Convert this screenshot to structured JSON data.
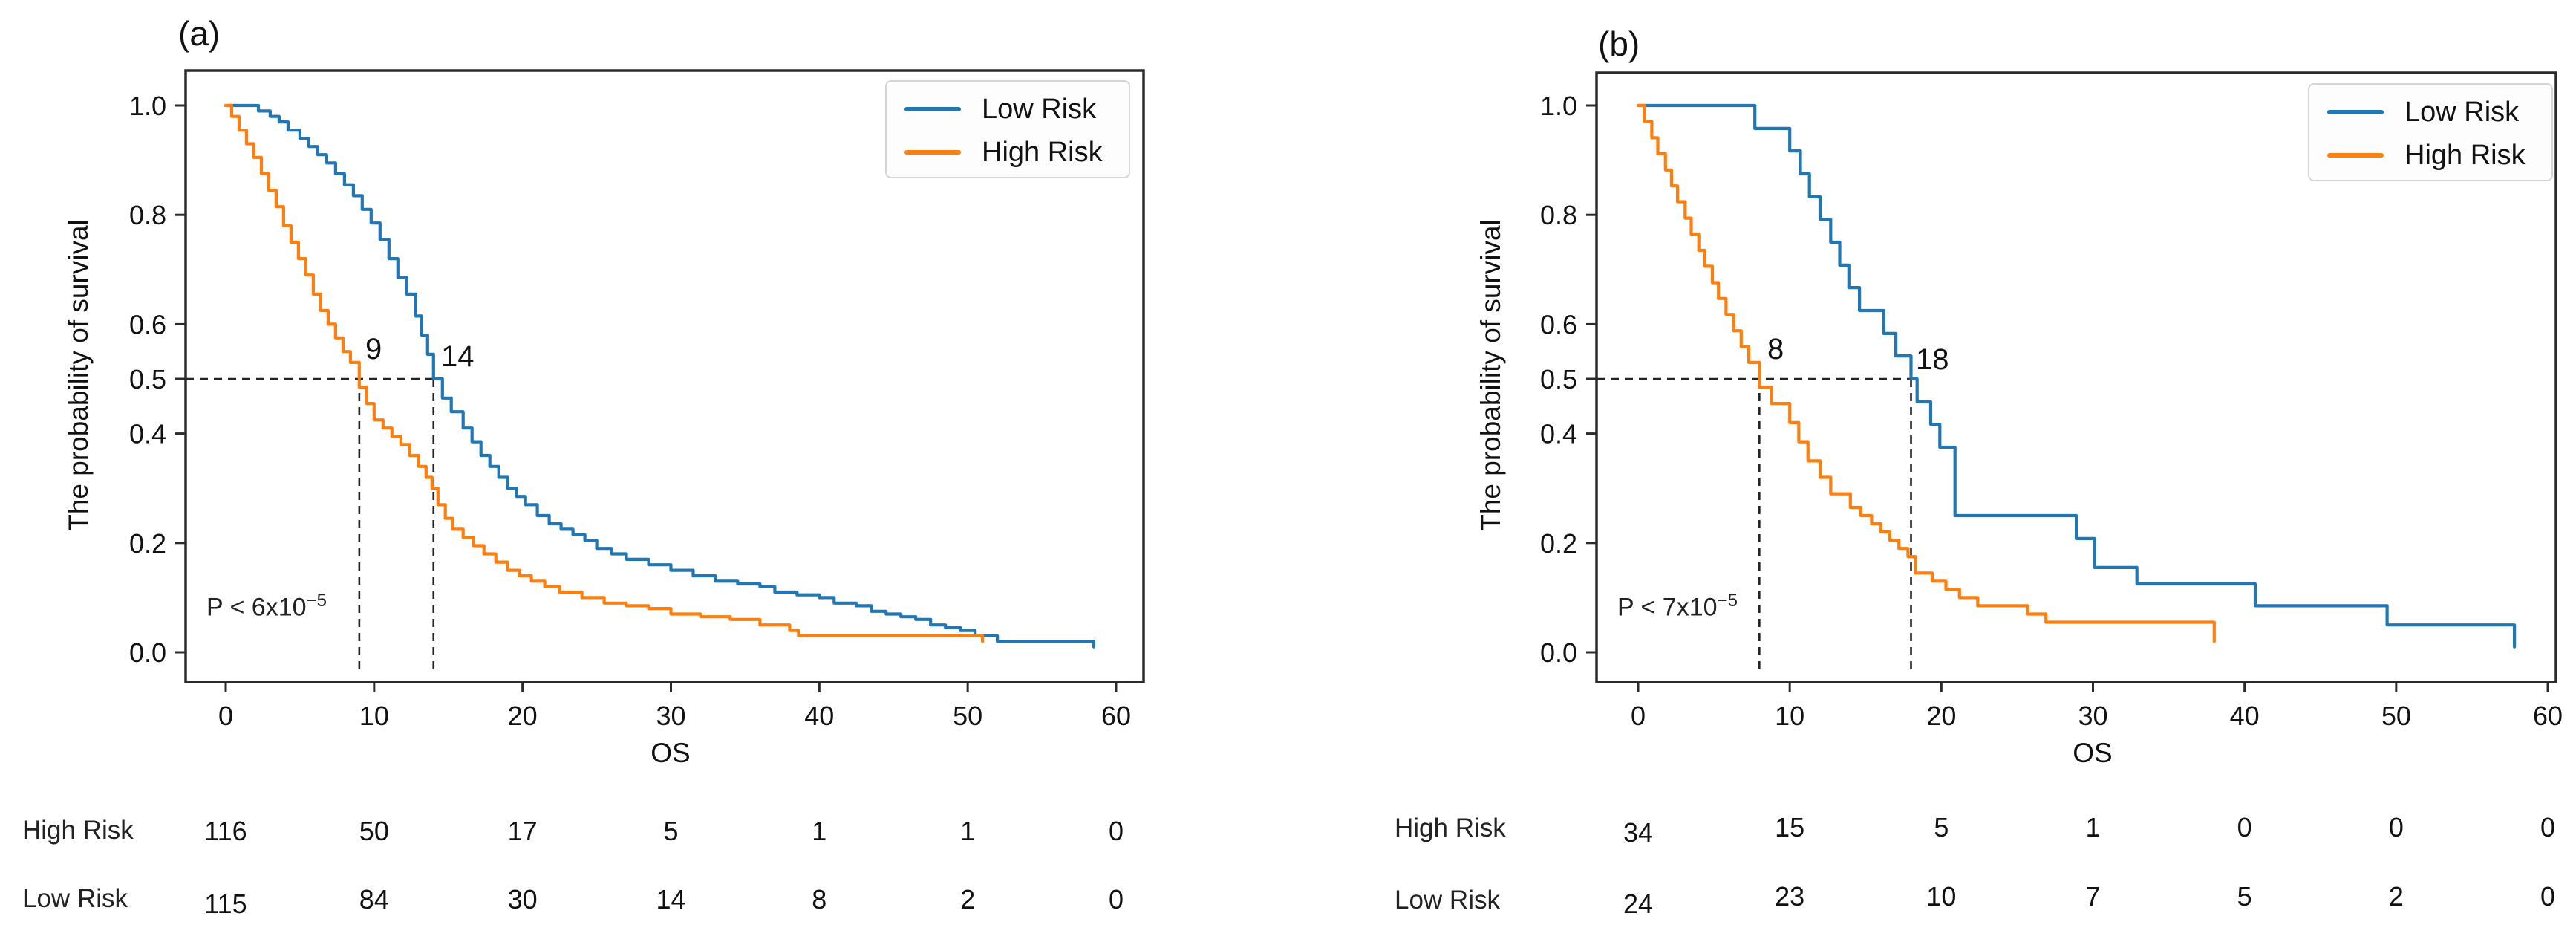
{
  "chart_data": [
    {
      "type": "line",
      "subtype": "kaplan-meier-step",
      "title": "(a)",
      "xlabel": "OS",
      "ylabel": "The probability of survival",
      "xticks": [
        0,
        10,
        20,
        30,
        40,
        50,
        60
      ],
      "yticks": [
        "1.0",
        "0.8",
        "0.6",
        "0.5",
        "0.4",
        "0.2",
        "0.0"
      ],
      "ytick_values": [
        1.0,
        0.8,
        0.6,
        0.5,
        0.4,
        0.2,
        0.0
      ],
      "xlim": [
        0,
        60
      ],
      "ylim": [
        0.0,
        1.0
      ],
      "grid": false,
      "legend_position": "upper right",
      "annotations": {
        "p_value_base": "P < 6x10",
        "p_value_sup": "−5",
        "median_line_y": 0.5,
        "medians": [
          {
            "label": "9",
            "x": 9,
            "series": "High Risk"
          },
          {
            "label": "14",
            "x": 14,
            "series": "Low Risk"
          }
        ]
      },
      "series": [
        {
          "name": "Low Risk",
          "color": "#2077b4",
          "points": [
            [
              0,
              1.0
            ],
            [
              2.2,
              0.99
            ],
            [
              3,
              0.98
            ],
            [
              3.6,
              0.97
            ],
            [
              4.2,
              0.955
            ],
            [
              5,
              0.94
            ],
            [
              5.6,
              0.925
            ],
            [
              6.2,
              0.91
            ],
            [
              6.8,
              0.895
            ],
            [
              7.4,
              0.875
            ],
            [
              8,
              0.855
            ],
            [
              8.6,
              0.835
            ],
            [
              9.2,
              0.81
            ],
            [
              9.8,
              0.785
            ],
            [
              10.4,
              0.755
            ],
            [
              11,
              0.72
            ],
            [
              11.6,
              0.685
            ],
            [
              12.2,
              0.655
            ],
            [
              12.8,
              0.615
            ],
            [
              13.2,
              0.58
            ],
            [
              13.6,
              0.545
            ],
            [
              14,
              0.5
            ],
            [
              14.6,
              0.465
            ],
            [
              15.2,
              0.44
            ],
            [
              16,
              0.41
            ],
            [
              16.6,
              0.385
            ],
            [
              17.2,
              0.36
            ],
            [
              17.8,
              0.34
            ],
            [
              18.4,
              0.32
            ],
            [
              19,
              0.3
            ],
            [
              19.6,
              0.285
            ],
            [
              20.2,
              0.27
            ],
            [
              21,
              0.25
            ],
            [
              21.8,
              0.235
            ],
            [
              22.6,
              0.225
            ],
            [
              23.4,
              0.215
            ],
            [
              24.2,
              0.205
            ],
            [
              25,
              0.19
            ],
            [
              26,
              0.18
            ],
            [
              27,
              0.17
            ],
            [
              28.5,
              0.16
            ],
            [
              30,
              0.15
            ],
            [
              31.5,
              0.14
            ],
            [
              33,
              0.13
            ],
            [
              34.5,
              0.125
            ],
            [
              36,
              0.12
            ],
            [
              37,
              0.11
            ],
            [
              38.5,
              0.105
            ],
            [
              40,
              0.1
            ],
            [
              41,
              0.09
            ],
            [
              42.5,
              0.085
            ],
            [
              43.5,
              0.075
            ],
            [
              44.5,
              0.07
            ],
            [
              45.5,
              0.065
            ],
            [
              46.5,
              0.06
            ],
            [
              47.5,
              0.05
            ],
            [
              48.5,
              0.045
            ],
            [
              49.5,
              0.04
            ],
            [
              50.5,
              0.03
            ],
            [
              52,
              0.02
            ],
            [
              58.5,
              0.01
            ]
          ]
        },
        {
          "name": "High Risk",
          "color": "#ff7f0e",
          "points": [
            [
              0,
              1.0
            ],
            [
              0.4,
              0.98
            ],
            [
              0.9,
              0.955
            ],
            [
              1.4,
              0.93
            ],
            [
              1.9,
              0.905
            ],
            [
              2.4,
              0.875
            ],
            [
              2.9,
              0.845
            ],
            [
              3.4,
              0.815
            ],
            [
              3.9,
              0.78
            ],
            [
              4.4,
              0.75
            ],
            [
              4.9,
              0.72
            ],
            [
              5.4,
              0.69
            ],
            [
              5.9,
              0.655
            ],
            [
              6.4,
              0.625
            ],
            [
              6.9,
              0.6
            ],
            [
              7.4,
              0.575
            ],
            [
              7.9,
              0.55
            ],
            [
              8.4,
              0.53
            ],
            [
              9,
              0.485
            ],
            [
              9.5,
              0.455
            ],
            [
              10,
              0.425
            ],
            [
              10.6,
              0.41
            ],
            [
              11.2,
              0.395
            ],
            [
              11.8,
              0.38
            ],
            [
              12.4,
              0.36
            ],
            [
              13,
              0.34
            ],
            [
              13.5,
              0.32
            ],
            [
              13.9,
              0.3
            ],
            [
              14.3,
              0.27
            ],
            [
              14.8,
              0.245
            ],
            [
              15.3,
              0.225
            ],
            [
              16,
              0.21
            ],
            [
              16.7,
              0.195
            ],
            [
              17.4,
              0.18
            ],
            [
              18.2,
              0.165
            ],
            [
              19,
              0.15
            ],
            [
              19.8,
              0.14
            ],
            [
              20.6,
              0.13
            ],
            [
              21.5,
              0.12
            ],
            [
              22.5,
              0.11
            ],
            [
              24,
              0.1
            ],
            [
              25.5,
              0.09
            ],
            [
              27,
              0.085
            ],
            [
              28.5,
              0.08
            ],
            [
              30,
              0.07
            ],
            [
              32,
              0.065
            ],
            [
              34,
              0.06
            ],
            [
              36,
              0.05
            ],
            [
              38,
              0.04
            ],
            [
              38.6,
              0.03
            ],
            [
              51,
              0.02
            ]
          ]
        }
      ],
      "risk_table": {
        "time_points": [
          0,
          10,
          20,
          30,
          40,
          50,
          60
        ],
        "rows": [
          {
            "label": "High Risk",
            "counts": [
              "116",
              "50",
              "17",
              "5",
              "1",
              "1",
              "0"
            ]
          },
          {
            "label": "Low Risk",
            "counts": [
              "115",
              "84",
              "30",
              "14",
              "8",
              "2",
              "0"
            ]
          }
        ]
      }
    },
    {
      "type": "line",
      "subtype": "kaplan-meier-step",
      "title": "(b)",
      "xlabel": "OS",
      "ylabel": "The probability of survival",
      "xticks": [
        0,
        10,
        20,
        30,
        40,
        50,
        60
      ],
      "yticks": [
        "1.0",
        "0.8",
        "0.6",
        "0.5",
        "0.4",
        "0.2",
        "0.0"
      ],
      "ytick_values": [
        1.0,
        0.8,
        0.6,
        0.5,
        0.4,
        0.2,
        0.0
      ],
      "xlim": [
        0,
        60
      ],
      "ylim": [
        0.0,
        1.0
      ],
      "grid": false,
      "legend_position": "upper right",
      "annotations": {
        "p_value_base": "P < 7x10",
        "p_value_sup": "−5",
        "median_line_y": 0.5,
        "medians": [
          {
            "label": "8",
            "x": 8,
            "series": "High Risk"
          },
          {
            "label": "18",
            "x": 18,
            "series": "Low Risk"
          }
        ]
      },
      "series": [
        {
          "name": "Low Risk",
          "color": "#2077b4",
          "points": [
            [
              0,
              1.0
            ],
            [
              7.7,
              0.958
            ],
            [
              10,
              0.917
            ],
            [
              10.7,
              0.875
            ],
            [
              11.3,
              0.833
            ],
            [
              12,
              0.792
            ],
            [
              12.7,
              0.75
            ],
            [
              13.3,
              0.708
            ],
            [
              13.9,
              0.667
            ],
            [
              14.6,
              0.625
            ],
            [
              16.2,
              0.583
            ],
            [
              17,
              0.542
            ],
            [
              18,
              0.5
            ],
            [
              18.4,
              0.458
            ],
            [
              19.3,
              0.417
            ],
            [
              19.9,
              0.375
            ],
            [
              20.9,
              0.25
            ],
            [
              28.9,
              0.208
            ],
            [
              30.1,
              0.155
            ],
            [
              32.9,
              0.125
            ],
            [
              40.7,
              0.085
            ],
            [
              49.4,
              0.05
            ],
            [
              57.8,
              0.01
            ]
          ]
        },
        {
          "name": "High Risk",
          "color": "#ff7f0e",
          "points": [
            [
              0,
              1.0
            ],
            [
              0.4,
              0.971
            ],
            [
              0.9,
              0.941
            ],
            [
              1.3,
              0.912
            ],
            [
              1.8,
              0.882
            ],
            [
              2.2,
              0.853
            ],
            [
              2.6,
              0.824
            ],
            [
              3.1,
              0.794
            ],
            [
              3.5,
              0.765
            ],
            [
              4,
              0.735
            ],
            [
              4.4,
              0.706
            ],
            [
              4.9,
              0.676
            ],
            [
              5.3,
              0.647
            ],
            [
              5.8,
              0.618
            ],
            [
              6.3,
              0.588
            ],
            [
              6.8,
              0.559
            ],
            [
              7.3,
              0.53
            ],
            [
              8,
              0.485
            ],
            [
              8.8,
              0.455
            ],
            [
              10,
              0.42
            ],
            [
              10.6,
              0.385
            ],
            [
              11.2,
              0.35
            ],
            [
              12,
              0.32
            ],
            [
              12.7,
              0.29
            ],
            [
              14,
              0.265
            ],
            [
              14.7,
              0.25
            ],
            [
              15.4,
              0.235
            ],
            [
              16,
              0.22
            ],
            [
              16.6,
              0.205
            ],
            [
              17.2,
              0.19
            ],
            [
              17.8,
              0.175
            ],
            [
              18.3,
              0.145
            ],
            [
              19.4,
              0.13
            ],
            [
              20.3,
              0.115
            ],
            [
              21.2,
              0.1
            ],
            [
              22.4,
              0.085
            ],
            [
              25.7,
              0.07
            ],
            [
              26.9,
              0.055
            ],
            [
              38,
              0.02
            ]
          ]
        }
      ],
      "risk_table": {
        "time_points": [
          0,
          10,
          20,
          30,
          40,
          50,
          60
        ],
        "rows": [
          {
            "label": "High Risk",
            "counts": [
              "34",
              "15",
              "5",
              "1",
              "0",
              "0",
              "0"
            ]
          },
          {
            "label": "Low Risk",
            "counts": [
              "24",
              "23",
              "10",
              "7",
              "5",
              "2",
              "0"
            ]
          }
        ]
      }
    }
  ]
}
